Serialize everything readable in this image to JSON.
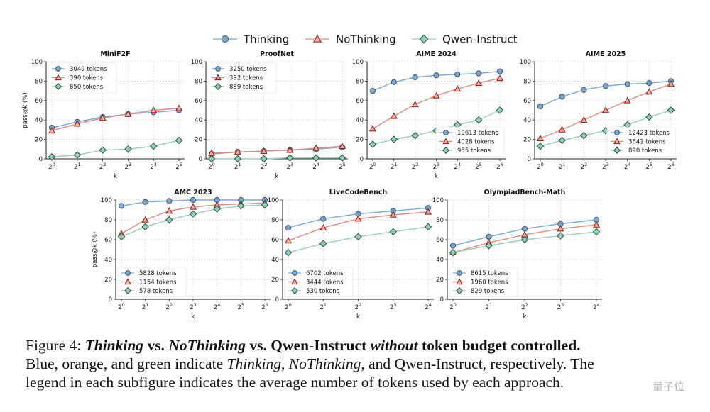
{
  "legend": {
    "series": [
      {
        "name": "Thinking",
        "color": "#7ea6cd",
        "edge": "#37526e",
        "marker": "circle"
      },
      {
        "name": "NoThinking",
        "color": "#f4ab9d",
        "edge": "#7b1f1a",
        "marker": "triangle",
        "line": "#d98c84"
      },
      {
        "name": "Qwen-Instruct",
        "color": "#8fd1b5",
        "edge": "#2e4a3b",
        "marker": "diamond",
        "line": "#9ccbb8"
      }
    ]
  },
  "chart_data": [
    {
      "type": "line",
      "title": "MiniF2F",
      "xlabel": "k",
      "ylabel": "pass@k (%)",
      "ylim": [
        0,
        100
      ],
      "x": [
        "2^0",
        "2^1",
        "2^2",
        "2^3",
        "2^4",
        "2^5"
      ],
      "legend_position": "top-left",
      "series": [
        {
          "name": "Thinking",
          "tokens": "3049 tokens",
          "values": [
            32,
            38,
            43,
            46,
            48,
            50
          ]
        },
        {
          "name": "NoThinking",
          "tokens": "390 tokens",
          "values": [
            29,
            36,
            42,
            46,
            50,
            52
          ]
        },
        {
          "name": "Qwen-Instruct",
          "tokens": "850 tokens",
          "values": [
            2,
            4,
            9,
            10,
            13,
            19
          ]
        }
      ]
    },
    {
      "type": "line",
      "title": "ProofNet",
      "xlabel": "k",
      "ylabel": "",
      "ylim": [
        0,
        100
      ],
      "x": [
        "2^0",
        "2^1",
        "2^2",
        "2^3",
        "2^4",
        "2^5"
      ],
      "legend_position": "top-left",
      "series": [
        {
          "name": "Thinking",
          "tokens": "3250 tokens",
          "values": [
            5,
            7,
            8,
            9,
            10,
            12
          ]
        },
        {
          "name": "NoThinking",
          "tokens": "392 tokens",
          "values": [
            6,
            7,
            8,
            9,
            11,
            13
          ]
        },
        {
          "name": "Qwen-Instruct",
          "tokens": "889 tokens",
          "values": [
            0,
            0,
            0,
            1,
            1,
            1
          ]
        }
      ]
    },
    {
      "type": "line",
      "title": "AIME 2024",
      "xlabel": "k",
      "ylabel": "",
      "ylim": [
        0,
        100
      ],
      "x": [
        "2^0",
        "2^1",
        "2^2",
        "2^3",
        "2^4",
        "2^5",
        "2^6"
      ],
      "legend_position": "bottom-right",
      "series": [
        {
          "name": "Thinking",
          "tokens": "10613 tokens",
          "values": [
            70,
            79,
            84,
            86,
            87,
            88,
            90
          ]
        },
        {
          "name": "NoThinking",
          "tokens": "4028 tokens",
          "values": [
            31,
            44,
            56,
            65,
            72,
            78,
            83
          ]
        },
        {
          "name": "Qwen-Instruct",
          "tokens": "955 tokens",
          "values": [
            15,
            20,
            24,
            29,
            35,
            40,
            50
          ]
        }
      ]
    },
    {
      "type": "line",
      "title": "AIME 2025",
      "xlabel": "",
      "ylabel": "",
      "ylim": [
        0,
        100
      ],
      "x": [
        "2^0",
        "2^1",
        "2^2",
        "2^3",
        "2^4",
        "2^5",
        "2^6"
      ],
      "legend_position": "bottom-right",
      "series": [
        {
          "name": "Thinking",
          "tokens": "12423 tokens",
          "values": [
            54,
            64,
            71,
            75,
            77,
            78,
            80
          ]
        },
        {
          "name": "NoThinking",
          "tokens": "3641 tokens",
          "values": [
            21,
            30,
            40,
            50,
            60,
            69,
            77
          ]
        },
        {
          "name": "Qwen-Instruct",
          "tokens": "890 tokens",
          "values": [
            13,
            19,
            24,
            29,
            35,
            43,
            50
          ]
        }
      ]
    },
    {
      "type": "line",
      "title": "AMC 2023",
      "xlabel": "k",
      "ylabel": "pass@k (%)",
      "ylim": [
        0,
        100
      ],
      "x": [
        "2^0",
        "2^1",
        "2^2",
        "2^3",
        "2^4",
        "2^5",
        "2^6"
      ],
      "legend_position": "bottom-left",
      "series": [
        {
          "name": "Thinking",
          "tokens": "5828 tokens",
          "values": [
            94,
            98,
            99,
            100,
            100,
            100,
            100
          ]
        },
        {
          "name": "NoThinking",
          "tokens": "1154 tokens",
          "values": [
            66,
            80,
            89,
            93,
            95,
            96,
            97
          ]
        },
        {
          "name": "Qwen-Instruct",
          "tokens": "578 tokens",
          "values": [
            63,
            73,
            80,
            86,
            91,
            94,
            95
          ]
        }
      ]
    },
    {
      "type": "line",
      "title": "LiveCodeBench",
      "xlabel": "k",
      "ylabel": "",
      "ylim": [
        0,
        100
      ],
      "x": [
        "2^0",
        "2^1",
        "2^2",
        "2^3",
        "2^4"
      ],
      "legend_position": "bottom-left",
      "series": [
        {
          "name": "Thinking",
          "tokens": "6702 tokens",
          "values": [
            72,
            81,
            86,
            89,
            92
          ]
        },
        {
          "name": "NoThinking",
          "tokens": "3444 tokens",
          "values": [
            59,
            72,
            81,
            85,
            88
          ]
        },
        {
          "name": "Qwen-Instruct",
          "tokens": "530 tokens",
          "values": [
            47,
            56,
            63,
            68,
            73
          ]
        }
      ]
    },
    {
      "type": "line",
      "title": "OlympiadBench-Math",
      "xlabel": "k",
      "ylabel": "",
      "ylim": [
        0,
        100
      ],
      "x": [
        "2^0",
        "2^1",
        "2^2",
        "2^3",
        "2^4"
      ],
      "legend_position": "bottom-left",
      "series": [
        {
          "name": "Thinking",
          "tokens": "8615 tokens",
          "values": [
            54,
            63,
            71,
            76,
            80
          ]
        },
        {
          "name": "NoThinking",
          "tokens": "1960 tokens",
          "values": [
            47,
            57,
            65,
            71,
            75
          ]
        },
        {
          "name": "Qwen-Instruct",
          "tokens": "829 tokens",
          "values": [
            47,
            54,
            60,
            64,
            68
          ]
        }
      ]
    }
  ],
  "caption": {
    "prefix": "Figure 4: ",
    "t_thinking": "Thinking",
    "vs1": " vs. ",
    "t_nothinking": "NoThinking",
    "vs2": " vs. Qwen-Instruct ",
    "t_without": "without",
    "suffix": " token budget controlled.",
    "l2_a": "Blue, orange, and green indicate ",
    "l2_thinking": "Thinking",
    "l2_b": ", ",
    "l2_nothinking": "NoThinking",
    "l2_c": ", and Qwen-Instruct, respectively. The",
    "line3": "legend in each subfigure indicates the average number of tokens used by each approach."
  },
  "watermark": "量子位"
}
